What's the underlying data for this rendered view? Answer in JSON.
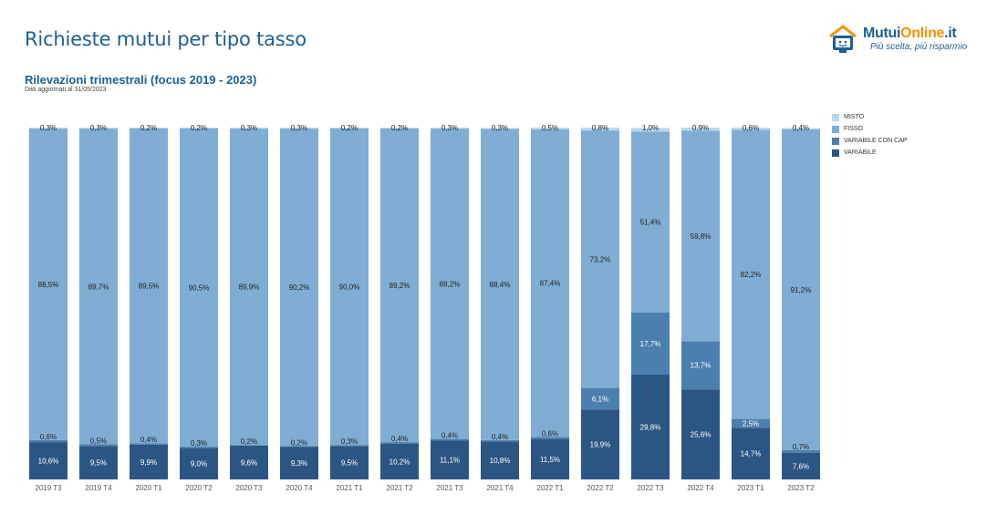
{
  "header": {
    "title": "Richieste mutui per tipo tasso",
    "subtitle": "Rilevazioni trimestrali (focus 2019 - 2023)",
    "note": "Dati aggiornati al 31/05/2023"
  },
  "logo": {
    "name_main": "Mutui",
    "name_accent": "Online",
    "name_suffix": ".it",
    "tagline": "Più scelta, più risparmio",
    "icon": "house-monitor-icon"
  },
  "colors": {
    "variabile": "#2b5683",
    "variabile_con_cap": "#4b7fad",
    "fisso": "#7fadd4",
    "misto": "#b8d9ef"
  },
  "chart_data": {
    "type": "bar",
    "stacked": true,
    "categories": [
      "2019 T3",
      "2019 T4",
      "2020 T1",
      "2020 T2",
      "2020 T3",
      "2020 T4",
      "2021 T1",
      "2021 T2",
      "2021 T3",
      "2021 T4",
      "2022 T1",
      "2022 T2",
      "2022 T3",
      "2022 T4",
      "2023 T1",
      "2023 T2"
    ],
    "series": [
      {
        "name": "VARIABILE",
        "key": "variabile",
        "values": [
          10.6,
          9.5,
          9.9,
          9.0,
          9.6,
          9.3,
          9.5,
          10.2,
          11.1,
          10.8,
          11.5,
          19.9,
          29.8,
          25.6,
          14.7,
          7.6
        ],
        "labels": [
          "10,6%",
          "9,5%",
          "9,9%",
          "9,0%",
          "9,6%",
          "9,3%",
          "9,5%",
          "10,2%",
          "11,1%",
          "10,8%",
          "11,5%",
          "19,9%",
          "29,8%",
          "25,6%",
          "14,7%",
          "7,6%"
        ]
      },
      {
        "name": "VARIABILE CON CAP",
        "key": "variabile_con_cap",
        "values": [
          0.6,
          0.5,
          0.4,
          0.3,
          0.2,
          0.2,
          0.3,
          0.4,
          0.4,
          0.4,
          0.6,
          6.1,
          17.7,
          13.7,
          2.5,
          0.7
        ],
        "labels": [
          "0,6%",
          "0,5%",
          "0,4%",
          "0,3%",
          "0,2%",
          "0,2%",
          "0,3%",
          "0,4%",
          "0,4%",
          "0,4%",
          "0,6%",
          "6,1%",
          "17,7%",
          "13,7%",
          "2,5%",
          "0,7%"
        ]
      },
      {
        "name": "FISSO",
        "key": "fisso",
        "values": [
          88.5,
          89.7,
          89.5,
          90.5,
          89.9,
          90.2,
          90.0,
          89.2,
          88.2,
          88.4,
          87.4,
          73.2,
          51.4,
          59.8,
          82.2,
          91.2
        ],
        "labels": [
          "88,5%",
          "89,7%",
          "89,5%",
          "90,5%",
          "89,9%",
          "90,2%",
          "90,0%",
          "89,2%",
          "88,2%",
          "88,4%",
          "87,4%",
          "73,2%",
          "51,4%",
          "59,8%",
          "82,2%",
          "91,2%"
        ]
      },
      {
        "name": "MISTO",
        "key": "misto",
        "values": [
          0.3,
          0.3,
          0.2,
          0.2,
          0.3,
          0.3,
          0.2,
          0.2,
          0.3,
          0.3,
          0.5,
          0.8,
          1.0,
          0.9,
          0.6,
          0.4
        ],
        "labels": [
          "0,3%",
          "0,3%",
          "0,2%",
          "0,2%",
          "0,3%",
          "0,3%",
          "0,2%",
          "0,2%",
          "0,3%",
          "0,3%",
          "0,5%",
          "0,8%",
          "1,0%",
          "0,9%",
          "0,6%",
          "0,4%"
        ]
      }
    ],
    "ylim": [
      0,
      100
    ],
    "grid": false,
    "legend_position": "top-right",
    "legend_order": [
      "MISTO",
      "FISSO",
      "VARIABILE CON CAP",
      "VARIABILE"
    ]
  }
}
